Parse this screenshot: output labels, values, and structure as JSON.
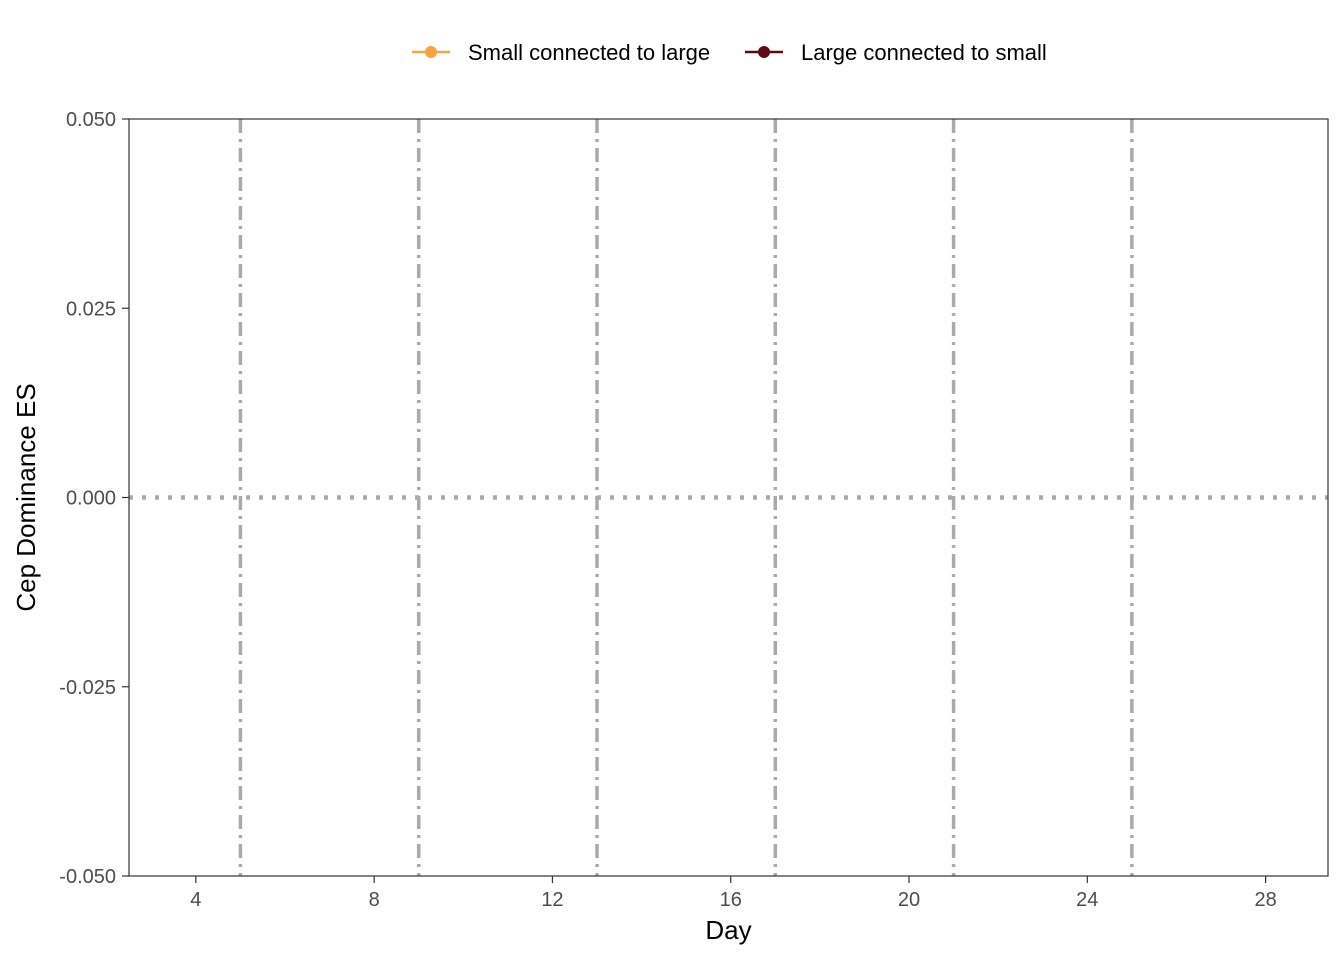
{
  "chart_data": {
    "type": "line",
    "title": "",
    "xlabel": "Day",
    "ylabel": "Cep Dominance ES",
    "xlim": [
      2.5,
      29.4
    ],
    "ylim": [
      -0.05,
      0.05
    ],
    "x_ticks": [
      4,
      8,
      12,
      16,
      20,
      24,
      28
    ],
    "x_tick_labels": [
      "4",
      "8",
      "12",
      "16",
      "20",
      "24",
      "28"
    ],
    "y_ticks": [
      -0.05,
      -0.025,
      0,
      0.025,
      0.05
    ],
    "y_tick_labels": [
      "-0.050",
      "-0.025",
      "0.000",
      "0.025",
      "0.050"
    ],
    "grid": false,
    "legend_position": "top",
    "series": [
      {
        "name": "Small connected to large",
        "color": "#f5a442",
        "x": [],
        "y": []
      },
      {
        "name": "Large connected to small",
        "color": "#5c0a18",
        "x": [],
        "y": []
      }
    ],
    "reference_lines": {
      "horizontal": {
        "y": 0,
        "style": "dotted",
        "color": "#aaaaaa"
      },
      "vertical": {
        "x": [
          5,
          9,
          13,
          17,
          21,
          25
        ],
        "style": "dashdot",
        "color": "#aaaaaa"
      }
    }
  }
}
